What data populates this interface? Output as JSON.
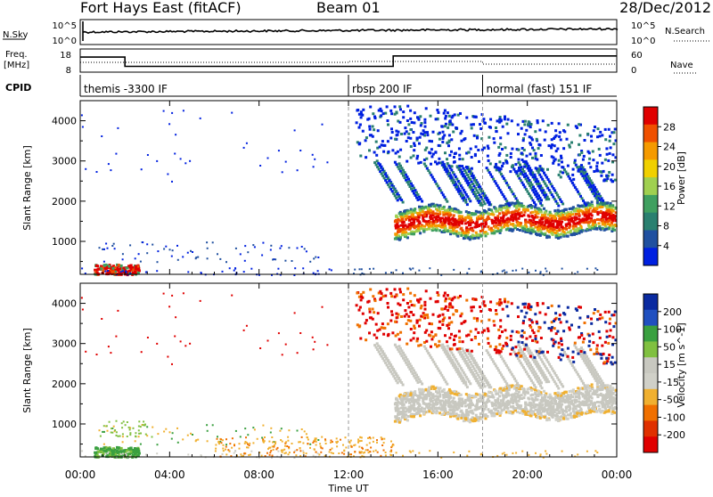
{
  "header": {
    "station": "Fort Hays East (fitACF)",
    "beam": "Beam 01",
    "date": "28/Dec/2012"
  },
  "noise_panel": {
    "left_label": "N.Sky",
    "right_label": "N.Search",
    "left_ticks": [
      "10^5",
      "10^0"
    ],
    "right_ticks": [
      "10^5",
      "10^0"
    ]
  },
  "freq_panel": {
    "left_label_1": "Freq.",
    "left_label_2": "[MHz]",
    "right_label": "Nave",
    "left_ticks": [
      "18",
      "8"
    ],
    "right_ticks": [
      "60",
      "0"
    ],
    "freq_steps_hours": [
      0,
      2.0,
      14.0,
      24
    ],
    "freq_values_mhz": [
      14.5,
      10.5,
      15.0
    ]
  },
  "cpid_panel": {
    "label": "CPID",
    "segments": [
      {
        "start_h": 0,
        "end_h": 12,
        "text": "themis -3300 IF"
      },
      {
        "start_h": 12,
        "end_h": 18,
        "text": "rbsp 200 IF"
      },
      {
        "start_h": 18,
        "end_h": 24,
        "text": "normal (fast) 151 IF"
      }
    ]
  },
  "x_axis": {
    "title": "Time UT",
    "tick_labels": [
      "00:00",
      "04:00",
      "08:00",
      "12:00",
      "16:00",
      "20:00",
      "00:00"
    ]
  },
  "power_panel": {
    "ylabel": "Slant Range [km]",
    "colorbar_label": "Power [dB]",
    "colorbar_ticks": [
      "28",
      "24",
      "20",
      "16",
      "12",
      "8",
      "4"
    ]
  },
  "velocity_panel": {
    "ylabel": "Slant Range [km]",
    "colorbar_label": "Velocity [m s^-1]",
    "colorbar_ticks": [
      "200",
      "100",
      "50",
      "15",
      "-15",
      "-50",
      "-100",
      "-200"
    ]
  },
  "colors": {
    "power_scale": [
      "#e00000",
      "#f05000",
      "#f59a00",
      "#f0d000",
      "#a0d050",
      "#40a060",
      "#2a8070",
      "#2050a0",
      "#0020e0"
    ],
    "velocity_scale": [
      "#0a2aa0",
      "#2050c0",
      "#3aa040",
      "#80c040",
      "#c8c8c0",
      "#d0d0c8",
      "#f0b030",
      "#f07000",
      "#e03000",
      "#e00000"
    ]
  },
  "chart_data": {
    "type": "heatmap",
    "title": "Fort Hays East (fitACF)",
    "xlabel": "Time UT",
    "ylabel": "Slant Range [km]",
    "xlim_hours": [
      0,
      24
    ],
    "ylim_km": [
      180,
      4500
    ],
    "panels": [
      "Power [dB]",
      "Velocity [m s^-1]"
    ],
    "power_range_db": [
      0,
      30
    ],
    "velocity_range_ms": [
      -250,
      250
    ]
  }
}
